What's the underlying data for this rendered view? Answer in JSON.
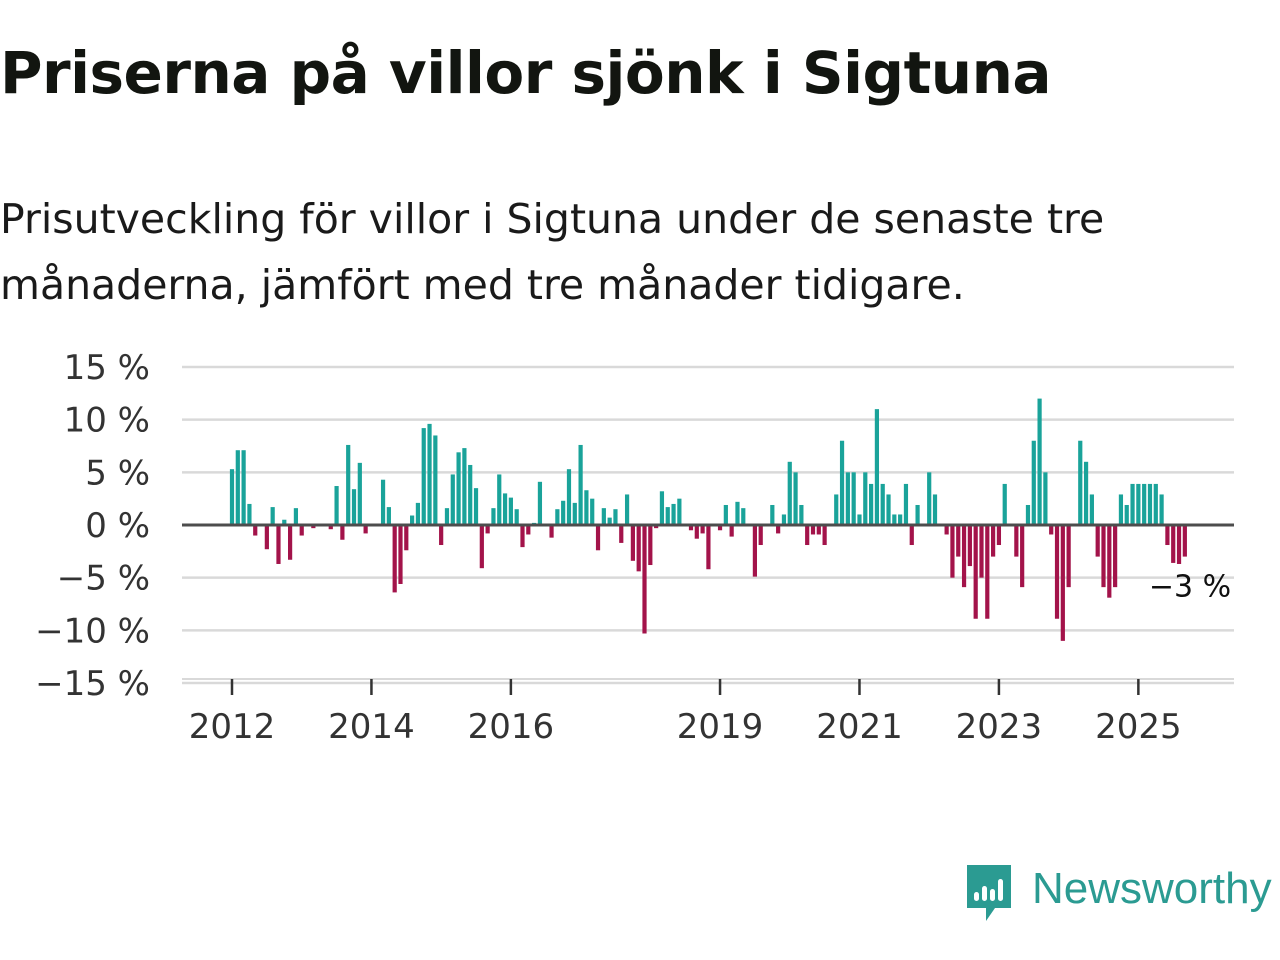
{
  "title": "Priserna på villor sjönk i Sigtuna",
  "subtitle": "Prisutveckling för villor i Sigtuna under de senaste tre månaderna, jämfört med tre månader tidigare.",
  "brand": {
    "name": "Newsworthy",
    "color": "#2b9b92"
  },
  "colors": {
    "positive": "#1aa39a",
    "negative": "#a3134a",
    "grid": "#d9d9d9",
    "zero": "#4d4d4d"
  },
  "chart_data": {
    "type": "bar",
    "title": "Priserna på villor sjönk i Sigtuna",
    "xlabel": "",
    "ylabel": "",
    "ylim": [
      -15,
      15
    ],
    "yticks": [
      15,
      10,
      5,
      0,
      -5,
      -10,
      -15
    ],
    "ytick_labels": [
      "15 %",
      "10 %",
      "5 %",
      "0 %",
      "−5 %",
      "−10 %",
      "−15 %"
    ],
    "xticks": [
      {
        "label": "2012",
        "index": 0
      },
      {
        "label": "2014",
        "index": 24
      },
      {
        "label": "2016",
        "index": 48
      },
      {
        "label": "2019",
        "index": 84
      },
      {
        "label": "2021",
        "index": 108
      },
      {
        "label": "2023",
        "index": 132
      },
      {
        "label": "2025",
        "index": 156
      }
    ],
    "end_label": "−3 %",
    "series": [
      {
        "name": "Prisutveckling",
        "unit": "%",
        "frequency": "monthly",
        "start": "2012-01",
        "values": [
          5.3,
          7.1,
          7.1,
          2.0,
          -1.0,
          0,
          -2.3,
          1.7,
          -3.7,
          0.5,
          -3.3,
          1.6,
          -1.0,
          0,
          -0.3,
          0,
          0,
          -0.4,
          3.7,
          -1.4,
          7.6,
          3.4,
          5.9,
          -0.8,
          0,
          0,
          4.3,
          1.7,
          -6.4,
          -5.6,
          -2.4,
          0.9,
          2.1,
          9.2,
          9.6,
          8.5,
          -1.9,
          1.6,
          4.8,
          6.9,
          7.3,
          5.7,
          3.5,
          -4.1,
          -0.8,
          1.6,
          4.8,
          3.0,
          2.6,
          1.5,
          -2.1,
          -0.9,
          0.2,
          4.1,
          0,
          -1.2,
          1.5,
          2.3,
          5.3,
          2.1,
          7.6,
          3.3,
          2.5,
          -2.4,
          1.6,
          0.7,
          1.5,
          -1.7,
          2.9,
          -3.4,
          -4.4,
          -10.3,
          -3.8,
          -0.3,
          3.2,
          1.7,
          2.0,
          2.5,
          0,
          -0.5,
          -1.3,
          -0.8,
          -4.2,
          0,
          -0.5,
          1.9,
          -1.1,
          2.2,
          1.6,
          0,
          -4.9,
          -1.9,
          0,
          1.9,
          -0.8,
          1.0,
          6.0,
          5.0,
          1.9,
          -1.9,
          -0.9,
          -0.9,
          -1.9,
          0,
          2.9,
          8.0,
          5.0,
          5.0,
          1.0,
          5.0,
          3.9,
          11.0,
          3.9,
          2.9,
          1.0,
          1.0,
          3.9,
          -1.9,
          1.9,
          0,
          5.0,
          2.9,
          0,
          -0.9,
          -5.0,
          -3.0,
          -5.9,
          -3.9,
          -8.9,
          -5.0,
          -8.9,
          -3.0,
          -1.9,
          3.9,
          0,
          -3.0,
          -5.9,
          1.9,
          8.0,
          12.0,
          5.0,
          -0.9,
          -8.9,
          -11.0,
          -5.9,
          0,
          8.0,
          6.0,
          2.9,
          -3.0,
          -5.9,
          -6.9,
          -5.9,
          2.9,
          1.9,
          3.9,
          3.9,
          3.9,
          3.9,
          3.9,
          2.9,
          -1.9,
          -3.6,
          -3.7,
          -3.0
        ]
      }
    ]
  }
}
